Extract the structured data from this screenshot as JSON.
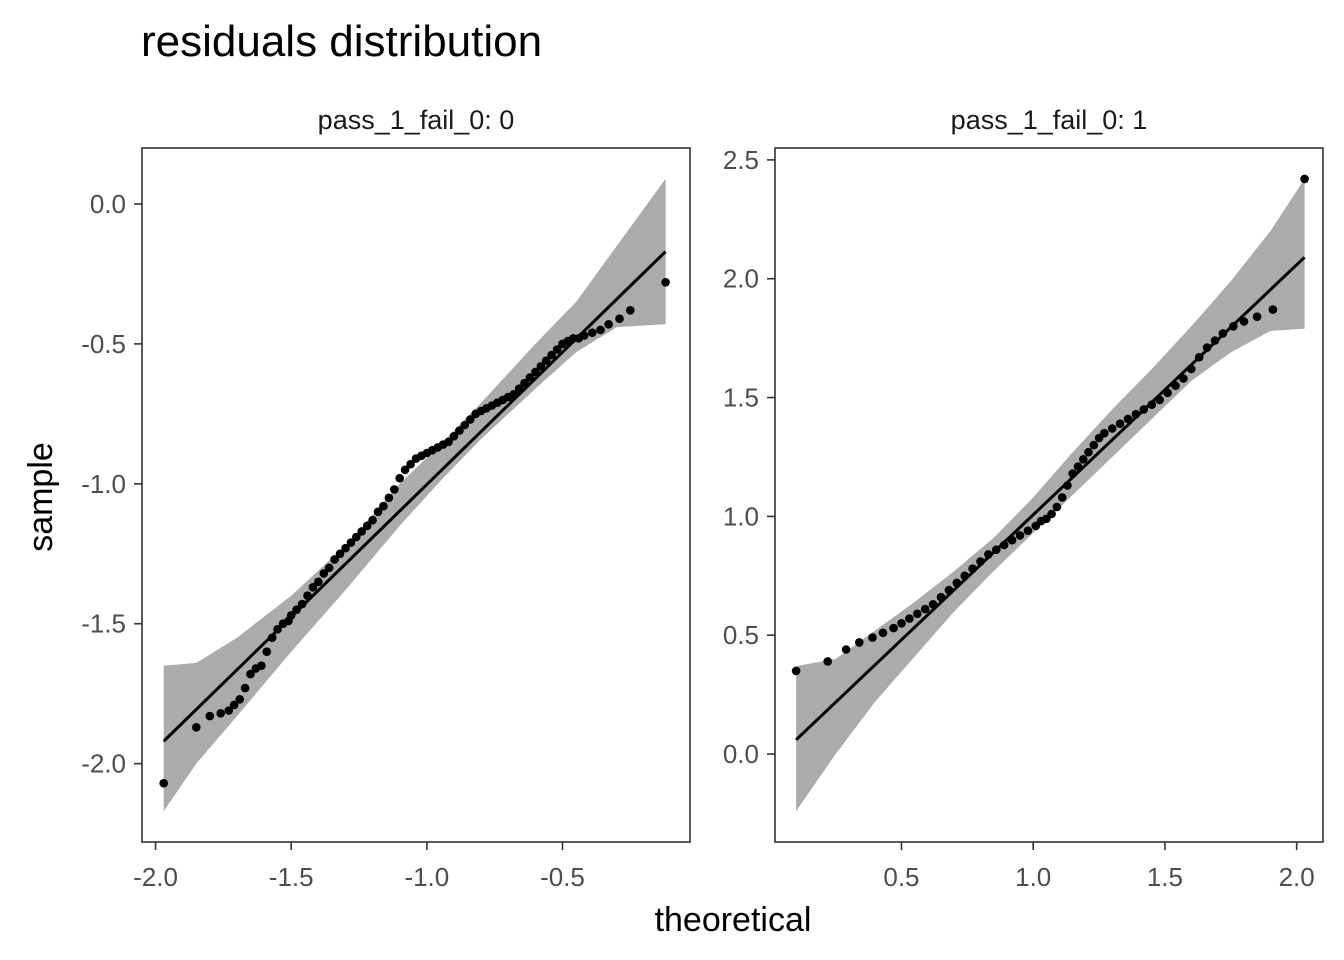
{
  "chart_data": {
    "type": "scatter",
    "title": "residuals distribution",
    "xlabel": "theoretical",
    "ylabel": "sample",
    "grid": false,
    "legend": "none",
    "colors": {
      "points": "#000000",
      "line": "#000000",
      "band": "#ababab",
      "panel_border": "#333333",
      "tick_text": "#4d4d4d"
    },
    "panels": [
      {
        "strip": "pass_1_fail_0: 0",
        "xlim": [
          -2.05,
          -0.03
        ],
        "ylim": [
          -2.28,
          0.2
        ],
        "x_ticks": [
          -2.0,
          -1.5,
          -1.0,
          -0.5
        ],
        "x_tick_labels": [
          "-2.0",
          "-1.5",
          "-1.0",
          "-0.5"
        ],
        "y_ticks": [
          -2.0,
          -1.5,
          -1.0,
          -0.5,
          0.0
        ],
        "y_tick_labels": [
          "-2.0",
          "-1.5",
          "-1.0",
          "-0.5",
          "0.0"
        ],
        "line": {
          "x": [
            -1.97,
            -0.12
          ],
          "y": [
            -1.92,
            -0.17
          ]
        },
        "band": {
          "x": [
            -1.97,
            -1.85,
            -1.7,
            -1.5,
            -1.3,
            -1.1,
            -0.95,
            -0.8,
            -0.6,
            -0.45,
            -0.3,
            -0.12
          ],
          "upper": [
            -1.65,
            -1.64,
            -1.55,
            -1.4,
            -1.22,
            -1.0,
            -0.86,
            -0.71,
            -0.5,
            -0.35,
            -0.15,
            0.09
          ],
          "lower": [
            -2.17,
            -2.0,
            -1.83,
            -1.6,
            -1.38,
            -1.15,
            -0.99,
            -0.84,
            -0.66,
            -0.53,
            -0.44,
            -0.43
          ]
        },
        "x": [
          -1.97,
          -1.85,
          -1.8,
          -1.76,
          -1.73,
          -1.71,
          -1.69,
          -1.67,
          -1.65,
          -1.63,
          -1.61,
          -1.59,
          -1.57,
          -1.55,
          -1.53,
          -1.51,
          -1.5,
          -1.48,
          -1.46,
          -1.44,
          -1.42,
          -1.4,
          -1.38,
          -1.36,
          -1.34,
          -1.32,
          -1.3,
          -1.28,
          -1.26,
          -1.24,
          -1.22,
          -1.2,
          -1.18,
          -1.16,
          -1.14,
          -1.12,
          -1.1,
          -1.08,
          -1.06,
          -1.04,
          -1.02,
          -1.0,
          -0.98,
          -0.96,
          -0.94,
          -0.92,
          -0.9,
          -0.88,
          -0.86,
          -0.84,
          -0.82,
          -0.8,
          -0.78,
          -0.76,
          -0.74,
          -0.72,
          -0.7,
          -0.68,
          -0.66,
          -0.64,
          -0.62,
          -0.6,
          -0.58,
          -0.56,
          -0.54,
          -0.52,
          -0.5,
          -0.48,
          -0.46,
          -0.44,
          -0.42,
          -0.39,
          -0.36,
          -0.33,
          -0.29,
          -0.25,
          -0.12
        ],
        "y": [
          -2.07,
          -1.87,
          -1.83,
          -1.82,
          -1.81,
          -1.79,
          -1.77,
          -1.73,
          -1.68,
          -1.66,
          -1.65,
          -1.6,
          -1.55,
          -1.52,
          -1.5,
          -1.49,
          -1.47,
          -1.45,
          -1.43,
          -1.4,
          -1.37,
          -1.35,
          -1.32,
          -1.3,
          -1.27,
          -1.25,
          -1.23,
          -1.21,
          -1.19,
          -1.17,
          -1.15,
          -1.13,
          -1.1,
          -1.08,
          -1.05,
          -1.02,
          -0.98,
          -0.95,
          -0.93,
          -0.91,
          -0.9,
          -0.89,
          -0.88,
          -0.87,
          -0.86,
          -0.85,
          -0.83,
          -0.81,
          -0.79,
          -0.77,
          -0.75,
          -0.74,
          -0.73,
          -0.72,
          -0.71,
          -0.7,
          -0.69,
          -0.68,
          -0.66,
          -0.64,
          -0.62,
          -0.6,
          -0.58,
          -0.56,
          -0.54,
          -0.52,
          -0.5,
          -0.49,
          -0.48,
          -0.48,
          -0.47,
          -0.46,
          -0.45,
          -0.43,
          -0.41,
          -0.38,
          -0.28
        ]
      },
      {
        "strip": "pass_1_fail_0: 1",
        "xlim": [
          0.02,
          2.1
        ],
        "ylim": [
          -0.37,
          2.55
        ],
        "x_ticks": [
          0.5,
          1.0,
          1.5,
          2.0
        ],
        "x_tick_labels": [
          "0.5",
          "1.0",
          "1.5",
          "2.0"
        ],
        "y_ticks": [
          0.0,
          0.5,
          1.0,
          1.5,
          2.0,
          2.5
        ],
        "y_tick_labels": [
          "0.0",
          "0.5",
          "1.0",
          "1.5",
          "2.0",
          "2.5"
        ],
        "line": {
          "x": [
            0.1,
            2.03
          ],
          "y": [
            0.06,
            2.09
          ]
        },
        "band": {
          "x": [
            0.1,
            0.25,
            0.4,
            0.55,
            0.7,
            0.85,
            1.0,
            1.15,
            1.3,
            1.45,
            1.6,
            1.75,
            1.9,
            2.03
          ],
          "upper": [
            0.37,
            0.4,
            0.52,
            0.64,
            0.77,
            0.91,
            1.08,
            1.27,
            1.45,
            1.62,
            1.8,
            1.99,
            2.2,
            2.42
          ],
          "lower": [
            -0.24,
            0.0,
            0.22,
            0.41,
            0.6,
            0.77,
            0.93,
            1.09,
            1.25,
            1.41,
            1.57,
            1.69,
            1.78,
            1.79
          ]
        },
        "x": [
          0.1,
          0.22,
          0.29,
          0.34,
          0.39,
          0.43,
          0.47,
          0.5,
          0.53,
          0.56,
          0.59,
          0.62,
          0.65,
          0.68,
          0.71,
          0.74,
          0.77,
          0.8,
          0.83,
          0.86,
          0.89,
          0.92,
          0.95,
          0.98,
          1.01,
          1.03,
          1.05,
          1.07,
          1.09,
          1.11,
          1.13,
          1.15,
          1.17,
          1.19,
          1.21,
          1.23,
          1.25,
          1.27,
          1.3,
          1.33,
          1.36,
          1.39,
          1.42,
          1.45,
          1.48,
          1.51,
          1.54,
          1.57,
          1.6,
          1.63,
          1.66,
          1.69,
          1.72,
          1.76,
          1.8,
          1.85,
          1.91,
          2.03
        ],
        "y": [
          0.35,
          0.39,
          0.44,
          0.47,
          0.49,
          0.51,
          0.53,
          0.55,
          0.57,
          0.59,
          0.61,
          0.63,
          0.66,
          0.69,
          0.72,
          0.75,
          0.78,
          0.81,
          0.84,
          0.86,
          0.88,
          0.9,
          0.92,
          0.94,
          0.96,
          0.98,
          0.99,
          1.01,
          1.04,
          1.08,
          1.13,
          1.18,
          1.21,
          1.24,
          1.27,
          1.3,
          1.33,
          1.35,
          1.37,
          1.39,
          1.41,
          1.43,
          1.45,
          1.47,
          1.49,
          1.52,
          1.55,
          1.58,
          1.62,
          1.67,
          1.71,
          1.74,
          1.77,
          1.8,
          1.82,
          1.84,
          1.87,
          2.42
        ]
      }
    ]
  }
}
